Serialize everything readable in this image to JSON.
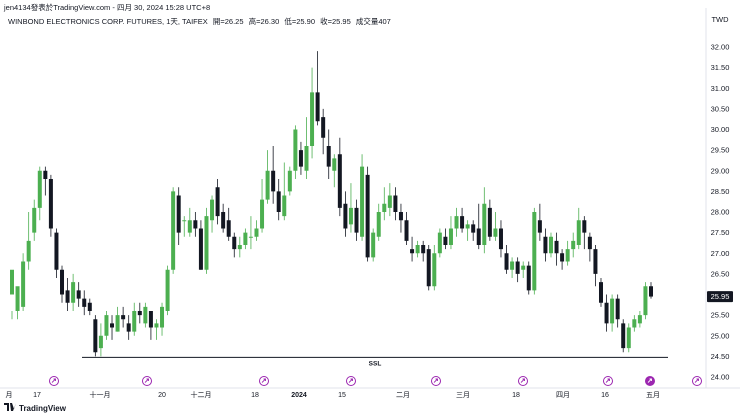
{
  "header": {
    "published": "jen4134發表於TradingView.com - 四月 30, 2024 15:28 UTC+8"
  },
  "legend": {
    "symbol": "WINBOND ELECTRONICS CORP. FUTURES, 1天, TAIFEX",
    "open": "開=26.25",
    "high": "高=26.30",
    "low": "低=25.90",
    "close": "收=25.95",
    "volume": "成交量407"
  },
  "currency": "TWD",
  "last_price": "25.95",
  "annotation": "SSL",
  "footer": {
    "brand": "TradingView"
  },
  "colors": {
    "up": "#4caf50",
    "down": "#131722",
    "event": "#9c27b0",
    "axis": "#131722"
  },
  "chart_data": {
    "type": "candlestick",
    "y_axis": {
      "min": 24.0,
      "max": 32.0,
      "ticks": [
        "32.00",
        "31.50",
        "31.00",
        "30.50",
        "30.00",
        "29.50",
        "29.00",
        "28.50",
        "28.00",
        "27.50",
        "27.00",
        "26.50",
        "26.00",
        "25.50",
        "25.00",
        "24.50",
        "24.00"
      ]
    },
    "x_axis": {
      "ticks": [
        "月",
        "17",
        "十一月",
        "20",
        "十二月",
        "18",
        "2024",
        "15",
        "二月",
        "三月",
        "18",
        "四月",
        "16",
        "五月"
      ]
    },
    "ssl_level": 24.5,
    "candles": [
      [
        26.0,
        26.6,
        25.6,
        25.4
      ],
      [
        25.6,
        26.2,
        25.7,
        25.4
      ],
      [
        25.7,
        26.8,
        27.0,
        25.6
      ],
      [
        26.8,
        27.3,
        28.0,
        26.6
      ],
      [
        27.5,
        28.1,
        28.3,
        27.3
      ],
      [
        28.1,
        29.0,
        29.1,
        27.8
      ],
      [
        29.0,
        28.8,
        29.1,
        28.4
      ],
      [
        28.8,
        27.6,
        28.9,
        27.4
      ],
      [
        27.5,
        26.6,
        27.6,
        26.4
      ],
      [
        26.6,
        26.0,
        26.7,
        25.8
      ],
      [
        26.1,
        25.8,
        26.4,
        25.6
      ],
      [
        25.8,
        26.3,
        26.5,
        25.6
      ],
      [
        26.1,
        25.9,
        26.3,
        25.7
      ],
      [
        25.9,
        25.7,
        26.1,
        25.5
      ],
      [
        25.8,
        25.6,
        25.9,
        25.5
      ],
      [
        25.4,
        24.6,
        25.5,
        24.5
      ],
      [
        24.7,
        25.0,
        25.3,
        24.5
      ],
      [
        25.0,
        25.5,
        25.6,
        24.9
      ],
      [
        25.3,
        25.2,
        25.5,
        24.9
      ],
      [
        25.1,
        25.5,
        25.7,
        25.1
      ],
      [
        25.5,
        25.4,
        25.7,
        25.2
      ],
      [
        25.3,
        25.1,
        25.5,
        24.9
      ],
      [
        25.1,
        25.6,
        25.8,
        25.0
      ],
      [
        25.6,
        25.5,
        25.8,
        25.3
      ],
      [
        25.3,
        25.7,
        25.8,
        25.2
      ],
      [
        25.6,
        25.2,
        25.6,
        24.9
      ],
      [
        25.2,
        25.3,
        25.4,
        24.9
      ],
      [
        25.2,
        25.7,
        25.8,
        25.0
      ],
      [
        25.6,
        26.6,
        26.7,
        25.5
      ],
      [
        26.6,
        28.5,
        28.6,
        26.5
      ],
      [
        28.4,
        27.5,
        28.6,
        27.2
      ],
      [
        27.8,
        27.8,
        27.9,
        27.4
      ],
      [
        27.5,
        27.8,
        28.1,
        27.4
      ],
      [
        27.8,
        27.6,
        28.0,
        27.4
      ],
      [
        27.6,
        26.6,
        27.8,
        26.6
      ],
      [
        26.6,
        27.9,
        28.1,
        26.5
      ],
      [
        27.8,
        28.3,
        28.4,
        27.5
      ],
      [
        28.6,
        27.9,
        28.8,
        27.7
      ],
      [
        28.0,
        27.6,
        28.2,
        27.5
      ],
      [
        27.8,
        27.4,
        28.1,
        27.3
      ],
      [
        27.4,
        27.1,
        27.5,
        26.9
      ],
      [
        27.1,
        27.2,
        27.4,
        26.9
      ],
      [
        27.2,
        27.5,
        27.6,
        27.1
      ],
      [
        27.4,
        27.4,
        27.9,
        27.1
      ],
      [
        27.4,
        27.6,
        27.8,
        27.3
      ],
      [
        27.6,
        28.3,
        28.8,
        27.5
      ],
      [
        28.3,
        29.0,
        29.5,
        28.2
      ],
      [
        29.0,
        28.5,
        29.6,
        28.2
      ],
      [
        28.5,
        28.0,
        28.8,
        27.8
      ],
      [
        27.9,
        28.4,
        29.2,
        27.8
      ],
      [
        28.5,
        29.0,
        29.1,
        28.4
      ],
      [
        29.0,
        30.0,
        30.1,
        28.8
      ],
      [
        29.5,
        29.1,
        29.7,
        28.9
      ],
      [
        29.0,
        29.6,
        30.3,
        28.8
      ],
      [
        29.6,
        30.9,
        31.5,
        29.3
      ],
      [
        30.9,
        30.2,
        31.9,
        30.1
      ],
      [
        30.3,
        29.8,
        30.5,
        29.4
      ],
      [
        29.6,
        29.1,
        30.0,
        28.8
      ],
      [
        29.0,
        29.3,
        29.4,
        28.6
      ],
      [
        29.4,
        28.1,
        29.8,
        27.9
      ],
      [
        28.2,
        27.6,
        28.5,
        27.4
      ],
      [
        27.7,
        28.1,
        28.7,
        27.5
      ],
      [
        28.1,
        27.5,
        28.3,
        27.3
      ],
      [
        27.4,
        29.1,
        29.4,
        27.3
      ],
      [
        28.9,
        26.9,
        29.1,
        26.8
      ],
      [
        26.9,
        27.5,
        27.6,
        26.8
      ],
      [
        27.4,
        28.0,
        28.2,
        27.3
      ],
      [
        28.0,
        28.2,
        28.6,
        27.8
      ],
      [
        28.1,
        28.4,
        28.7,
        27.9
      ],
      [
        28.4,
        28.0,
        28.6,
        27.8
      ],
      [
        28.0,
        27.8,
        28.2,
        27.5
      ],
      [
        27.8,
        27.3,
        28.0,
        27.2
      ],
      [
        27.1,
        27.0,
        27.4,
        26.8
      ],
      [
        27.0,
        27.2,
        27.3,
        26.9
      ],
      [
        27.2,
        27.0,
        27.3,
        26.8
      ],
      [
        27.1,
        26.2,
        27.2,
        26.1
      ],
      [
        26.2,
        27.0,
        27.2,
        26.1
      ],
      [
        27.0,
        27.5,
        27.6,
        26.9
      ],
      [
        27.4,
        27.2,
        27.6,
        27.1
      ],
      [
        27.2,
        27.6,
        27.9,
        27.1
      ],
      [
        27.6,
        27.9,
        28.1,
        27.4
      ],
      [
        27.9,
        27.6,
        28.1,
        27.5
      ],
      [
        27.6,
        27.7,
        27.8,
        27.3
      ],
      [
        27.7,
        27.5,
        27.8,
        27.3
      ],
      [
        27.6,
        27.2,
        28.2,
        27.1
      ],
      [
        27.2,
        28.2,
        28.6,
        27.0
      ],
      [
        28.1,
        27.4,
        28.3,
        27.3
      ],
      [
        27.4,
        27.6,
        28.0,
        27.3
      ],
      [
        27.6,
        27.1,
        27.8,
        26.9
      ],
      [
        27.0,
        26.6,
        27.2,
        26.5
      ],
      [
        26.6,
        26.8,
        26.9,
        26.4
      ],
      [
        26.8,
        26.5,
        26.9,
        26.3
      ],
      [
        26.6,
        26.7,
        26.8,
        26.4
      ],
      [
        26.7,
        26.1,
        26.8,
        26.0
      ],
      [
        26.1,
        28.0,
        28.1,
        26.0
      ],
      [
        27.8,
        27.5,
        28.2,
        27.3
      ],
      [
        27.4,
        27.0,
        27.6,
        26.8
      ],
      [
        27.0,
        27.4,
        27.5,
        26.9
      ],
      [
        27.3,
        27.0,
        27.5,
        26.7
      ],
      [
        27.0,
        26.8,
        27.1,
        26.6
      ],
      [
        26.8,
        27.1,
        27.3,
        26.7
      ],
      [
        27.1,
        27.3,
        27.5,
        26.9
      ],
      [
        27.2,
        27.8,
        28.1,
        27.1
      ],
      [
        27.8,
        27.5,
        27.9,
        27.1
      ],
      [
        27.4,
        27.1,
        27.5,
        26.8
      ],
      [
        27.1,
        26.5,
        27.2,
        26.2
      ],
      [
        26.3,
        25.8,
        26.4,
        25.7
      ],
      [
        25.8,
        25.3,
        26.0,
        25.1
      ],
      [
        25.3,
        25.9,
        26.0,
        25.1
      ],
      [
        25.9,
        25.4,
        26.0,
        25.2
      ],
      [
        25.3,
        24.7,
        25.4,
        24.6
      ],
      [
        24.7,
        25.2,
        25.3,
        24.6
      ],
      [
        25.2,
        25.4,
        25.5,
        25.1
      ],
      [
        25.3,
        25.5,
        25.6,
        25.2
      ],
      [
        25.5,
        26.2,
        26.3,
        25.4
      ],
      [
        26.2,
        25.95,
        26.3,
        25.9
      ]
    ]
  }
}
